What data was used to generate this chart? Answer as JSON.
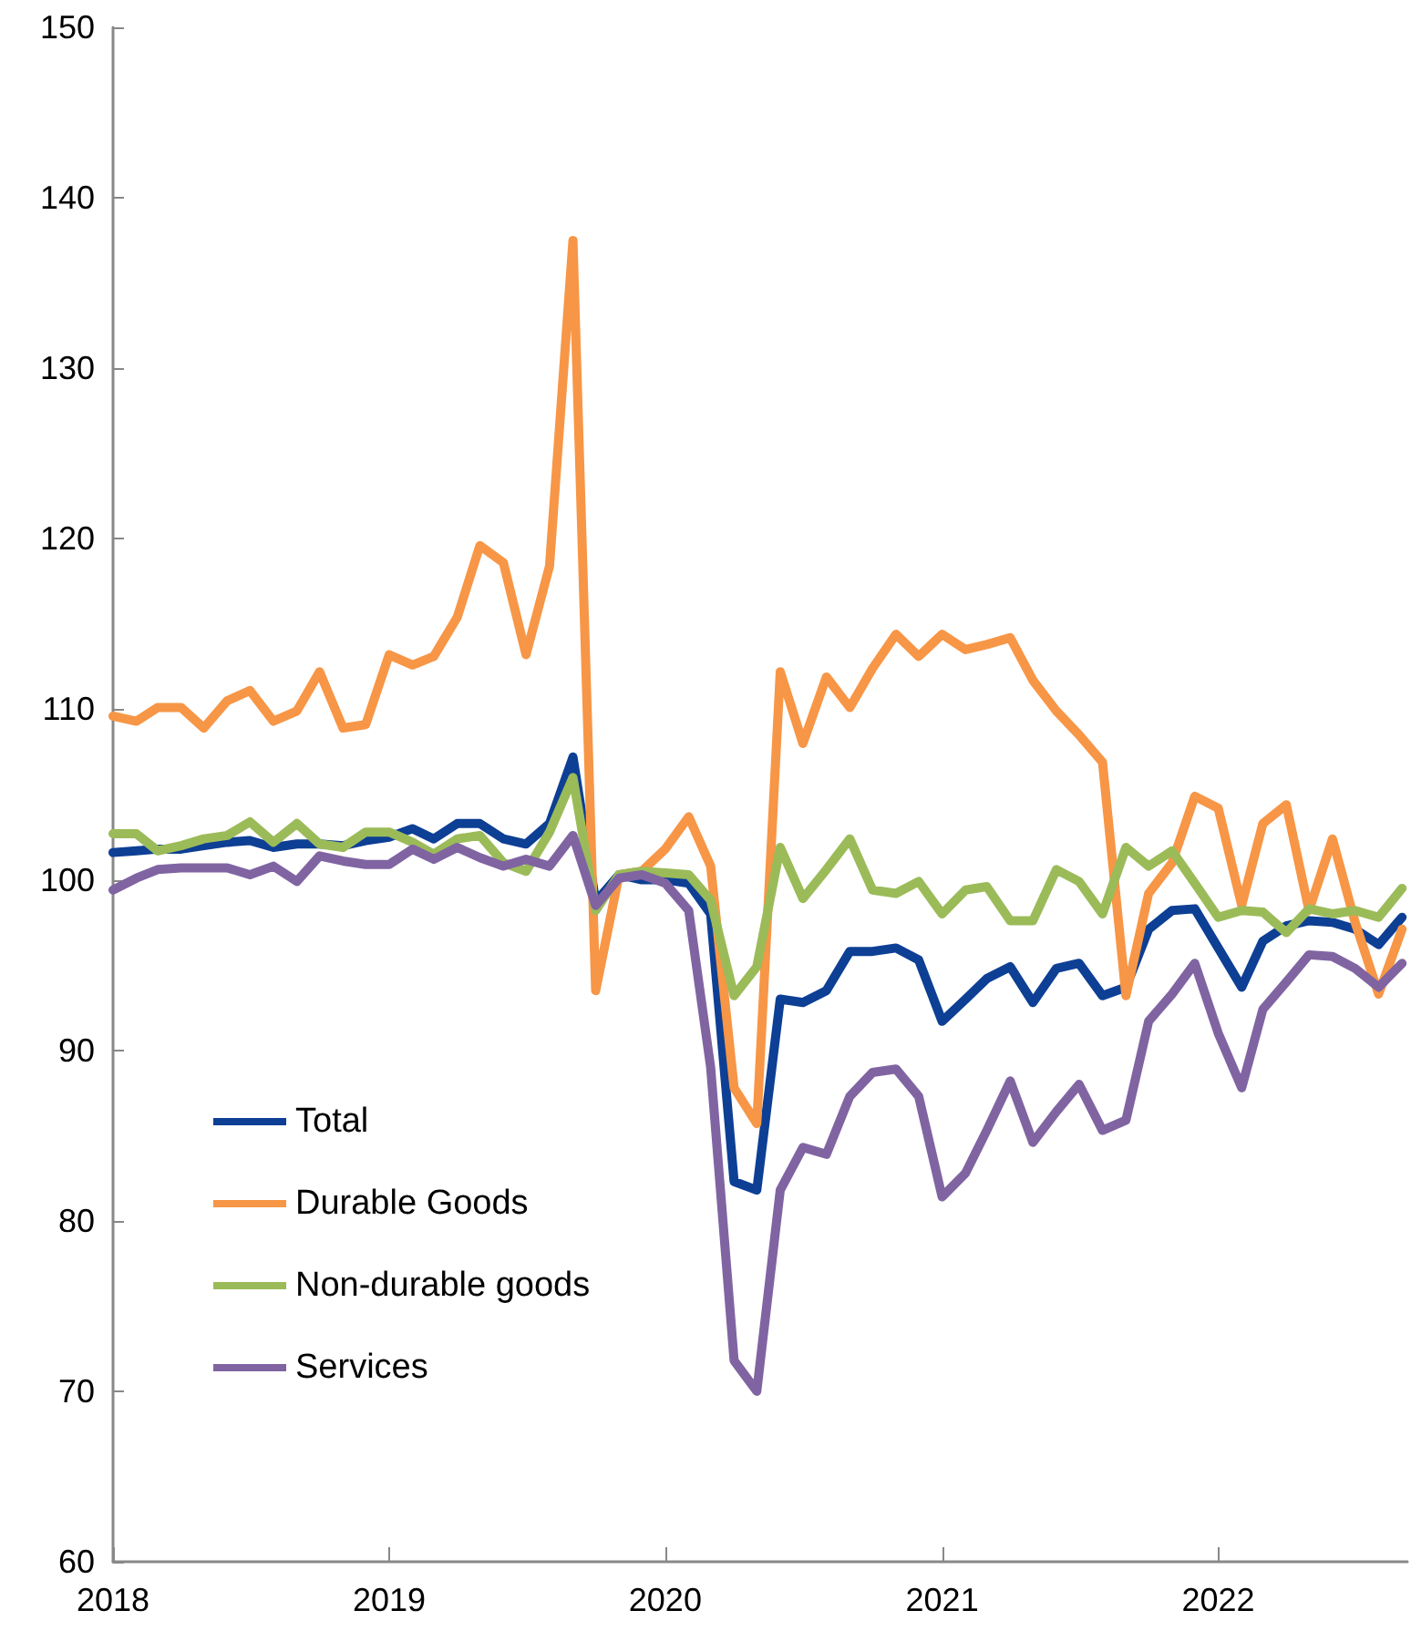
{
  "chart_data": {
    "type": "line",
    "x": [
      "2018-01",
      "2018-02",
      "2018-03",
      "2018-04",
      "2018-05",
      "2018-06",
      "2018-07",
      "2018-08",
      "2018-09",
      "2018-10",
      "2018-11",
      "2018-12",
      "2019-01",
      "2019-02",
      "2019-03",
      "2019-04",
      "2019-05",
      "2019-06",
      "2019-07",
      "2019-08",
      "2019-09",
      "2019-10",
      "2019-11",
      "2019-12",
      "2020-01",
      "2020-02",
      "2020-03",
      "2020-04",
      "2020-05",
      "2020-06",
      "2020-07",
      "2020-08",
      "2020-09",
      "2020-10",
      "2020-11",
      "2020-12",
      "2021-01",
      "2021-02",
      "2021-03",
      "2021-04",
      "2021-05",
      "2021-06",
      "2021-07",
      "2021-08",
      "2021-09",
      "2021-10",
      "2021-11",
      "2021-12",
      "2022-01",
      "2022-02",
      "2022-03",
      "2022-04",
      "2022-05",
      "2022-06",
      "2022-07",
      "2022-08",
      "2022-09"
    ],
    "series": [
      {
        "name": "Total",
        "color": "#0d3f94",
        "values": [
          101.6,
          101.7,
          101.8,
          101.8,
          102.0,
          102.2,
          102.3,
          101.9,
          102.1,
          102.1,
          102.0,
          102.3,
          102.5,
          103.0,
          102.4,
          103.3,
          103.3,
          102.4,
          102.1,
          103.3,
          107.2,
          98.7,
          100.3,
          100.0,
          100.0,
          99.8,
          98.0,
          82.3,
          81.8,
          93.0,
          92.8,
          93.5,
          95.8,
          95.8,
          96.0,
          95.3,
          91.7,
          93.0,
          94.2,
          94.9,
          92.8,
          94.8,
          95.1,
          93.2,
          93.7,
          97.1,
          98.2,
          98.3,
          96.0,
          93.7,
          96.4,
          97.3,
          97.6,
          97.5,
          97.1,
          96.2,
          97.8
        ]
      },
      {
        "name": "Durable Goods",
        "color": "#f79646",
        "values": [
          109.6,
          109.3,
          110.1,
          110.1,
          108.9,
          110.5,
          111.1,
          109.3,
          109.9,
          112.2,
          108.9,
          109.1,
          113.2,
          112.6,
          113.1,
          115.4,
          119.6,
          118.6,
          113.2,
          118.4,
          137.5,
          93.5,
          100.3,
          100.5,
          101.8,
          103.7,
          100.8,
          87.8,
          85.7,
          112.2,
          108.0,
          111.9,
          110.1,
          112.4,
          114.4,
          113.1,
          114.4,
          113.5,
          113.8,
          114.2,
          111.7,
          109.9,
          108.5,
          106.9,
          93.2,
          99.2,
          101.0,
          104.9,
          104.2,
          98.5,
          103.3,
          104.4,
          98.2,
          102.4,
          97.5,
          93.3,
          97.1
        ]
      },
      {
        "name": "Non-durable goods",
        "color": "#9bbb59",
        "values": [
          102.7,
          102.7,
          101.7,
          102.0,
          102.4,
          102.6,
          103.4,
          102.2,
          103.3,
          102.1,
          101.9,
          102.8,
          102.8,
          102.2,
          101.5,
          102.4,
          102.6,
          101.0,
          100.5,
          102.8,
          106.0,
          98.2,
          100.3,
          100.5,
          100.4,
          100.3,
          98.8,
          93.2,
          94.9,
          101.9,
          98.9,
          100.6,
          102.4,
          99.4,
          99.2,
          99.9,
          98.0,
          99.4,
          99.6,
          97.6,
          97.6,
          100.6,
          99.9,
          98.0,
          101.9,
          100.8,
          101.7,
          99.8,
          97.8,
          98.2,
          98.1,
          96.9,
          98.3,
          98.0,
          98.2,
          97.8,
          99.5
        ]
      },
      {
        "name": "Services",
        "color": "#8064a2",
        "values": [
          99.4,
          100.1,
          100.6,
          100.7,
          100.7,
          100.7,
          100.3,
          100.8,
          99.9,
          101.4,
          101.1,
          100.9,
          100.9,
          101.8,
          101.2,
          101.9,
          101.3,
          100.8,
          101.2,
          100.8,
          102.6,
          98.5,
          100.1,
          100.3,
          99.8,
          98.2,
          89.0,
          71.8,
          70.0,
          81.8,
          84.3,
          83.9,
          87.3,
          88.7,
          88.9,
          87.3,
          81.4,
          82.8,
          85.3,
          88.2,
          84.6,
          86.4,
          88.0,
          85.3,
          85.9,
          91.7,
          93.3,
          95.1,
          91.0,
          87.8,
          92.4,
          94.0,
          95.6,
          95.5,
          94.8,
          93.7,
          95.1
        ]
      }
    ],
    "xlim": [
      "2018-01",
      "2022-09-08"
    ],
    "xticks": [
      "2018",
      "2019",
      "2020",
      "2021",
      "2022"
    ],
    "ylim": [
      60,
      150
    ],
    "yticks": [
      60,
      70,
      80,
      90,
      100,
      110,
      120,
      130,
      140,
      150
    ],
    "grid": false,
    "legend": "bottom left"
  }
}
